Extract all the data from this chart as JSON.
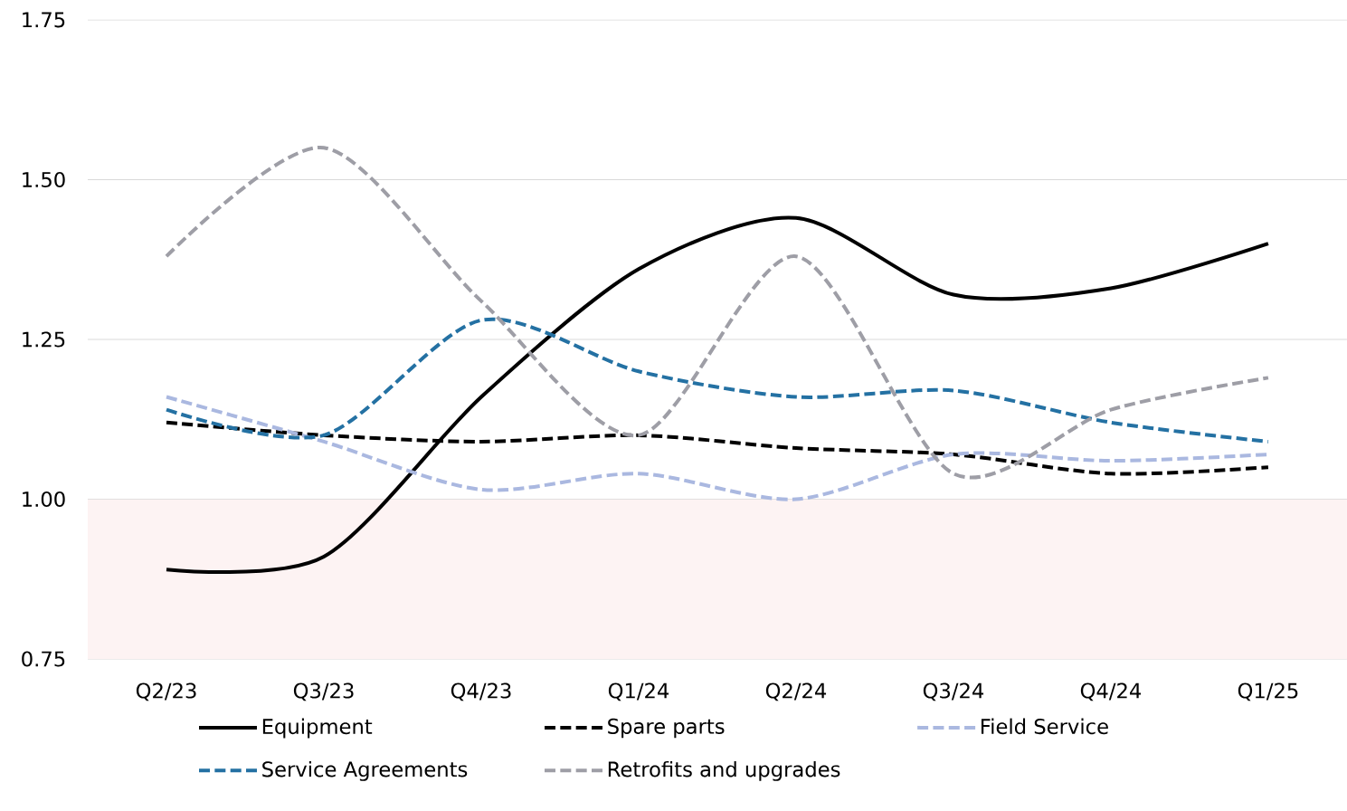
{
  "chart_data": {
    "type": "line",
    "categories": [
      "Q2/23",
      "Q3/23",
      "Q4/23",
      "Q1/24",
      "Q2/24",
      "Q3/24",
      "Q4/24",
      "Q1/25"
    ],
    "series": [
      {
        "name": "Equipment",
        "color": "#000000",
        "line_style": "solid",
        "values": [
          0.89,
          0.91,
          1.16,
          1.36,
          1.44,
          1.32,
          1.33,
          1.4
        ]
      },
      {
        "name": "Spare parts",
        "color": "#000000",
        "line_style": "dashed",
        "values": [
          1.12,
          1.1,
          1.09,
          1.1,
          1.08,
          1.07,
          1.04,
          1.05
        ]
      },
      {
        "name": "Field Service",
        "color": "#aab8e0",
        "line_style": "dashed",
        "values": [
          1.16,
          1.09,
          1.015,
          1.04,
          1.0,
          1.07,
          1.06,
          1.07
        ]
      },
      {
        "name": "Service Agreements",
        "color": "#2471a3",
        "line_style": "dashed",
        "values": [
          1.14,
          1.1,
          1.28,
          1.2,
          1.16,
          1.17,
          1.12,
          1.09
        ]
      },
      {
        "name": "Retrofits and upgrades",
        "color": "#9e9ea6",
        "line_style": "dashed",
        "values": [
          1.38,
          1.55,
          1.31,
          1.1,
          1.38,
          1.04,
          1.14,
          1.19
        ]
      }
    ],
    "ylim": [
      0.75,
      1.75
    ],
    "yticks": [
      {
        "value": 0.75,
        "label": "0.75"
      },
      {
        "value": 1.0,
        "label": "1.00"
      },
      {
        "value": 1.25,
        "label": "1.25"
      },
      {
        "value": 1.5,
        "label": "1.50"
      },
      {
        "value": 1.75,
        "label": "1.75"
      }
    ],
    "bands": [
      {
        "axis": "y",
        "from": 0.75,
        "to": 1.0,
        "color": "#fdf3f3"
      }
    ],
    "grid": "y",
    "legend": "bottom",
    "marker": "none"
  }
}
